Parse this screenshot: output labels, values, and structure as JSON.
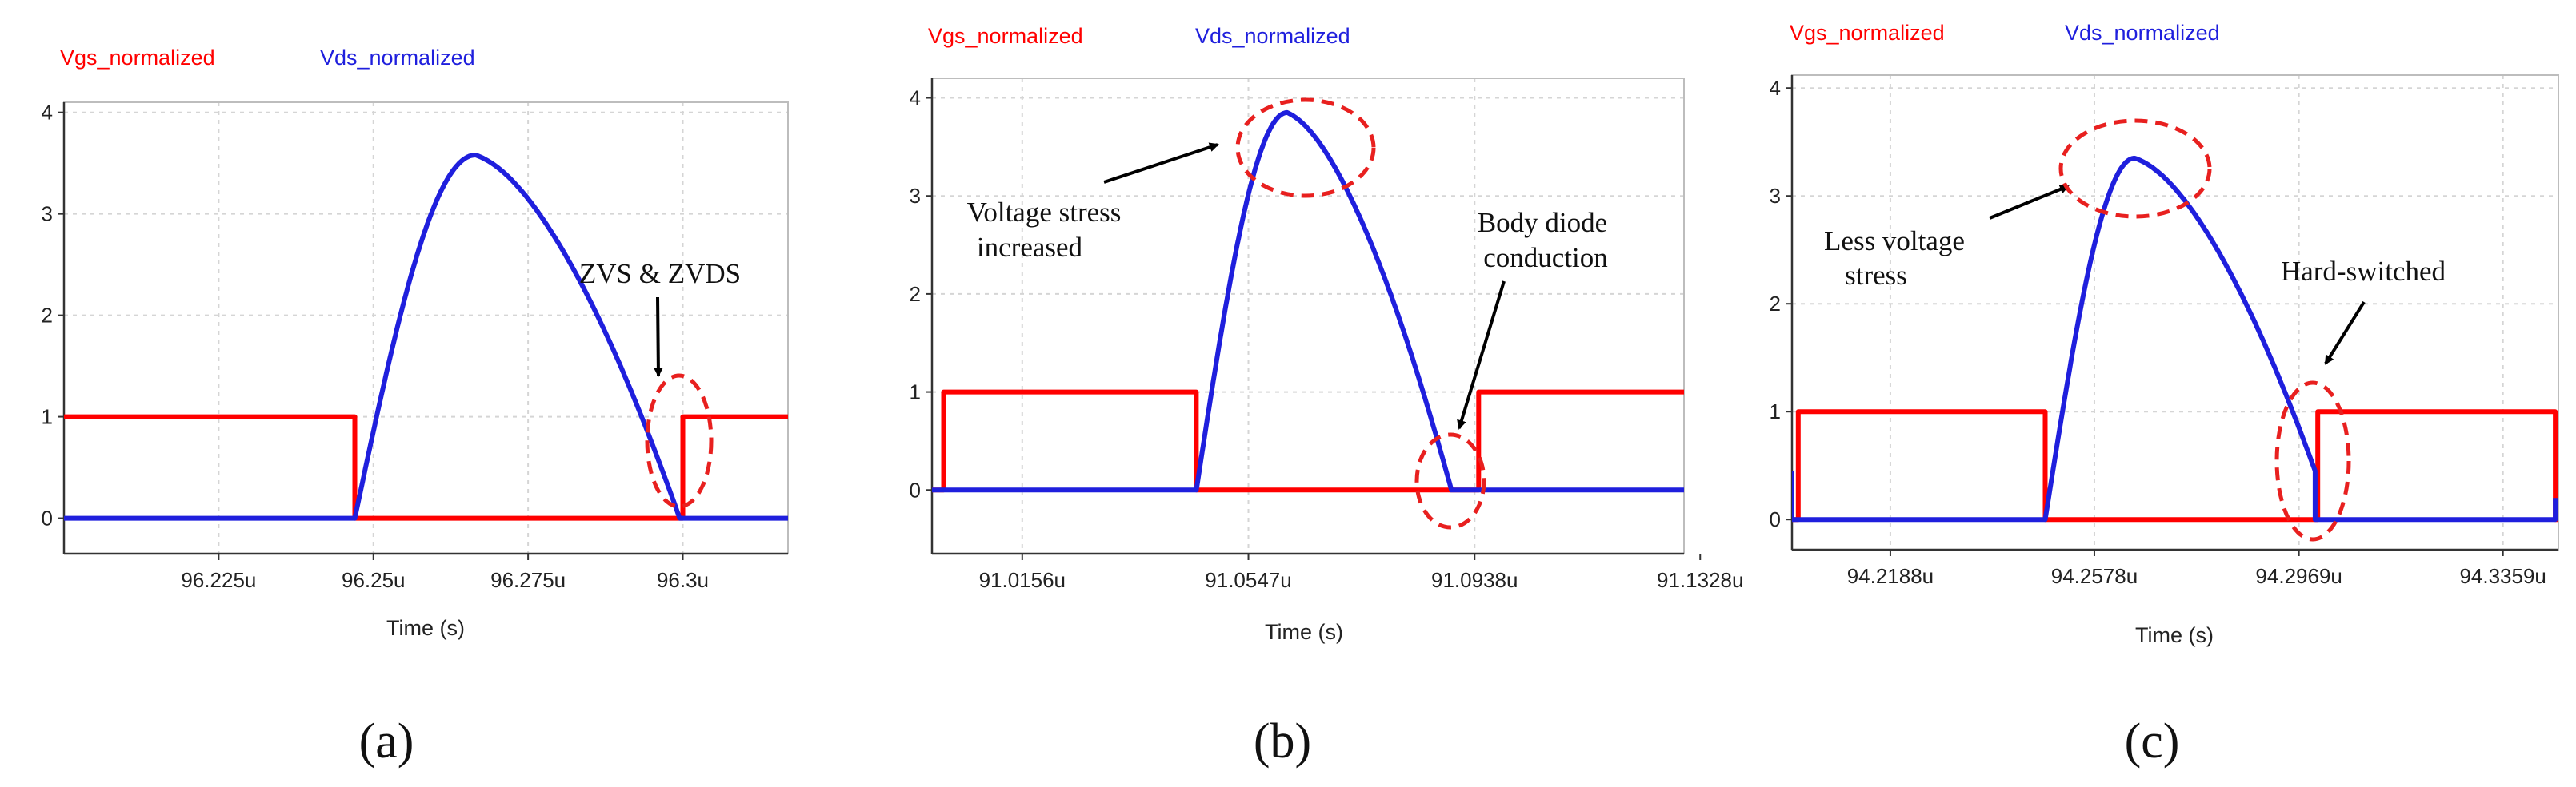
{
  "chart_data": [
    {
      "type": "line",
      "panel_label": "(a)",
      "xlabel": "Time (s)",
      "ylabel": "",
      "ylim": [
        -0.35,
        4.1
      ],
      "yticks": [
        "0",
        "1",
        "2",
        "3",
        "4"
      ],
      "xlim": [
        96.2,
        96.317
      ],
      "xticks": [
        {
          "value": 96.225,
          "label": "96.225u"
        },
        {
          "value": 96.25,
          "label": "96.25u"
        },
        {
          "value": 96.275,
          "label": "96.275u"
        },
        {
          "value": 96.3,
          "label": "96.3u"
        }
      ],
      "series": [
        {
          "name": "Vgs_normalized",
          "color": "#ff0000",
          "points": [
            [
              96.2,
              1
            ],
            [
              96.247,
              1
            ],
            [
              96.247,
              0
            ],
            [
              96.3,
              0
            ],
            [
              96.3,
              1
            ],
            [
              96.317,
              1
            ]
          ]
        },
        {
          "name": "Vds_normalized",
          "color": "#1f1fdd",
          "shape": {
            "kind": "bump",
            "x0": 96.247,
            "peak_x": 96.2665,
            "x1": 96.2995,
            "peak": 3.58,
            "tail": 0.0
          },
          "points": [
            [
              96.2,
              0
            ],
            [
              96.247,
              0
            ],
            [
              96.2995,
              0
            ],
            [
              96.317,
              0
            ]
          ]
        }
      ],
      "annotations": [
        {
          "lines": [
            "ZVS & ZVDS"
          ],
          "target": [
            96.3,
            0.5
          ]
        }
      ]
    },
    {
      "type": "line",
      "panel_label": "(b)",
      "xlabel": "Time (s)",
      "ylabel": "",
      "ylim": [
        -0.65,
        4.2
      ],
      "yticks": [
        "0",
        "1",
        "2",
        "3",
        "4"
      ],
      "xlim": [
        91.0,
        91.13
      ],
      "xticks": [
        {
          "value": 91.0156,
          "label": "91.0156u"
        },
        {
          "value": 91.0547,
          "label": "91.0547u"
        },
        {
          "value": 91.0938,
          "label": "91.0938u"
        },
        {
          "value": 91.1328,
          "label": "91.1328u"
        }
      ],
      "series": [
        {
          "name": "Vgs_normalized",
          "color": "#ff0000",
          "points": [
            [
              91.0,
              0
            ],
            [
              91.002,
              0
            ],
            [
              91.002,
              1
            ],
            [
              91.0457,
              1
            ],
            [
              91.0457,
              0
            ],
            [
              91.0945,
              0
            ],
            [
              91.0945,
              1
            ],
            [
              91.13,
              1
            ]
          ]
        },
        {
          "name": "Vds_normalized",
          "color": "#1f1fdd",
          "shape": {
            "kind": "bump",
            "x0": 91.0457,
            "peak_x": 91.0614,
            "x1": 91.0898,
            "peak": 3.85,
            "tail": 0.0
          },
          "points": [
            [
              91.0,
              0
            ],
            [
              91.0457,
              0
            ],
            [
              91.0898,
              0
            ],
            [
              91.13,
              0
            ]
          ]
        }
      ],
      "annotations": [
        {
          "lines": [
            "Voltage stress",
            "increased"
          ],
          "target": [
            91.0611,
            3.85
          ]
        },
        {
          "lines": [
            "Body diode",
            "conduction"
          ],
          "target": [
            91.0915,
            0.15
          ]
        }
      ]
    },
    {
      "type": "line",
      "panel_label": "(c)",
      "xlabel": "Time (s)",
      "ylabel": "",
      "ylim": [
        -0.28,
        4.12
      ],
      "yticks": [
        "0",
        "1",
        "2",
        "3",
        "4"
      ],
      "xlim": [
        94.2,
        94.3465
      ],
      "xticks": [
        {
          "value": 94.2188,
          "label": "94.2188u"
        },
        {
          "value": 94.2578,
          "label": "94.2578u"
        },
        {
          "value": 94.2969,
          "label": "94.2969u"
        },
        {
          "value": 94.3359,
          "label": "94.3359u"
        }
      ],
      "series": [
        {
          "name": "Vgs_normalized",
          "color": "#ff0000",
          "points": [
            [
              94.2,
              0
            ],
            [
              94.2012,
              0
            ],
            [
              94.2012,
              1
            ],
            [
              94.2484,
              1
            ],
            [
              94.2484,
              0
            ],
            [
              94.3005,
              0
            ],
            [
              94.3005,
              1
            ],
            [
              94.3459,
              1
            ],
            [
              94.3459,
              0
            ],
            [
              94.3465,
              0
            ]
          ]
        },
        {
          "name": "Vds_normalized",
          "color": "#1f1fdd",
          "shape": {
            "kind": "bump",
            "x0": 94.2484,
            "peak_x": 94.2655,
            "x1": 94.3,
            "peak": 3.35,
            "tail": 0.45
          },
          "points": [
            [
              94.2,
              0.45
            ],
            [
              94.2,
              0
            ],
            [
              94.2484,
              0
            ],
            [
              94.3,
              0.45
            ],
            [
              94.3,
              0
            ],
            [
              94.3459,
              0
            ],
            [
              94.3459,
              0.2
            ]
          ]
        }
      ],
      "annotations": [
        {
          "lines": [
            "Less voltage",
            "stress"
          ],
          "target": [
            94.2648,
            3.1
          ]
        },
        {
          "lines": [
            "Hard-switched"
          ],
          "target": [
            94.302,
            1.45
          ]
        }
      ]
    }
  ]
}
